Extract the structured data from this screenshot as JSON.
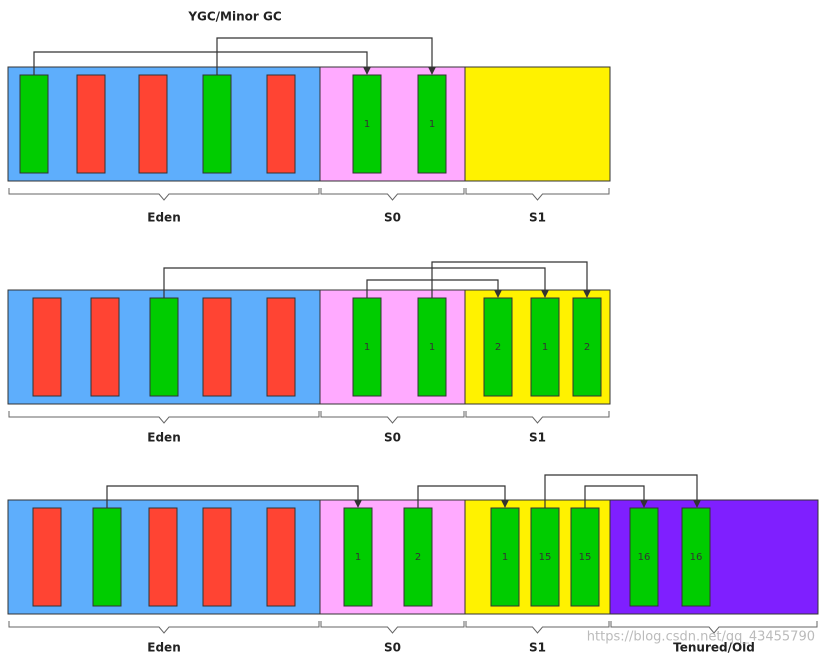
{
  "title": "YGC/Minor GC",
  "rows": [
    {
      "regions": [
        "Eden",
        "S0",
        "S1"
      ],
      "blocks": [
        1,
        1
      ]
    },
    {
      "regions": [
        "Eden",
        "S0",
        "S1"
      ],
      "blocks": [
        1,
        1,
        2,
        1,
        2
      ]
    },
    {
      "regions": [
        "Eden",
        "S0",
        "S1",
        "Tenured/Old"
      ],
      "blocks": [
        1,
        2,
        1,
        15,
        15,
        16,
        16
      ]
    }
  ],
  "watermark": "https://blog.csdn.net/qq_43455790"
}
